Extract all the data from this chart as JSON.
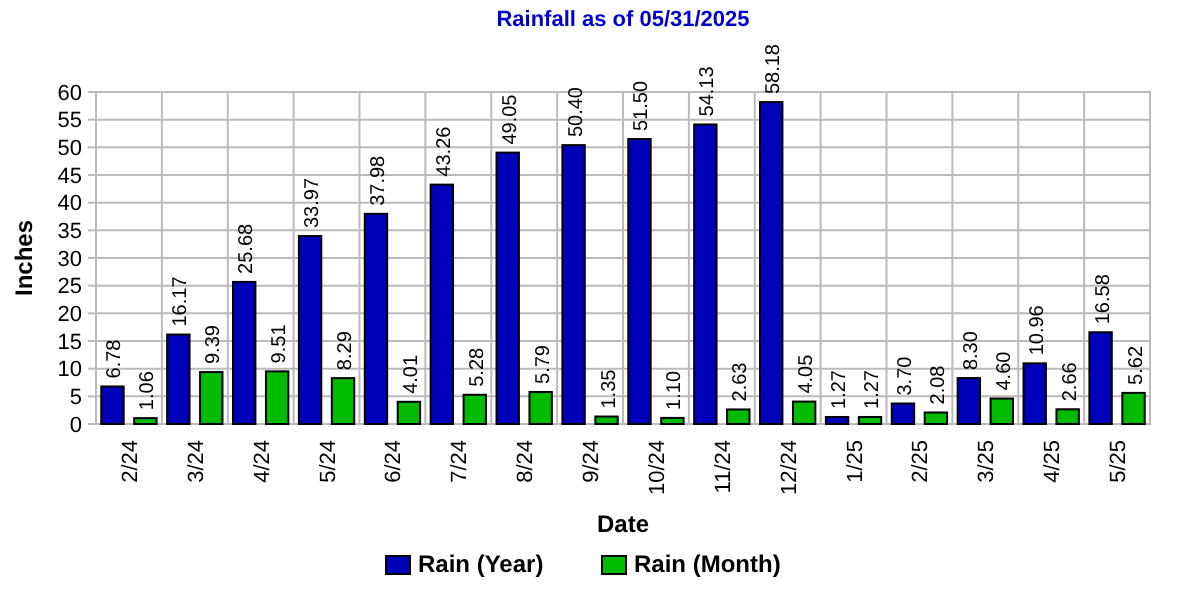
{
  "chart_data": {
    "type": "bar",
    "title": "Rainfall as of 05/31/2025",
    "xlabel": "Date",
    "ylabel": "Inches",
    "categories": [
      "2/24",
      "3/24",
      "4/24",
      "5/24",
      "6/24",
      "7/24",
      "8/24",
      "9/24",
      "10/24",
      "11/24",
      "12/24",
      "1/25",
      "2/25",
      "3/25",
      "4/25",
      "5/25"
    ],
    "series": [
      {
        "name": "Rain (Year)",
        "color": "#0000bb",
        "values": [
          6.78,
          16.17,
          25.68,
          33.97,
          37.98,
          43.26,
          49.05,
          50.4,
          51.5,
          54.13,
          58.18,
          1.27,
          3.7,
          8.3,
          10.96,
          16.58
        ],
        "value_labels": [
          "6.78",
          "16.17",
          "25.68",
          "33.97",
          "37.98",
          "43.26",
          "49.05",
          "50.40",
          "51.50",
          "54.13",
          "58.18",
          "1.27",
          "3.70",
          "8.30",
          "10.96",
          "16.58"
        ]
      },
      {
        "name": "Rain (Month)",
        "color": "#00bb00",
        "values": [
          1.06,
          9.39,
          9.51,
          8.29,
          4.01,
          5.28,
          5.79,
          1.35,
          1.1,
          2.63,
          4.05,
          1.27,
          2.08,
          4.6,
          2.66,
          5.62
        ],
        "value_labels": [
          "1.06",
          "9.39",
          "9.51",
          "8.29",
          "4.01",
          "5.28",
          "5.79",
          "1.35",
          "1.10",
          "2.63",
          "4.05",
          "1.27",
          "2.08",
          "4.60",
          "2.66",
          "5.62"
        ]
      }
    ],
    "ylim": [
      0,
      60
    ],
    "yticks": [
      0,
      5,
      10,
      15,
      20,
      25,
      30,
      35,
      40,
      45,
      50,
      55,
      60
    ],
    "grid": true,
    "legend": "bottom"
  }
}
